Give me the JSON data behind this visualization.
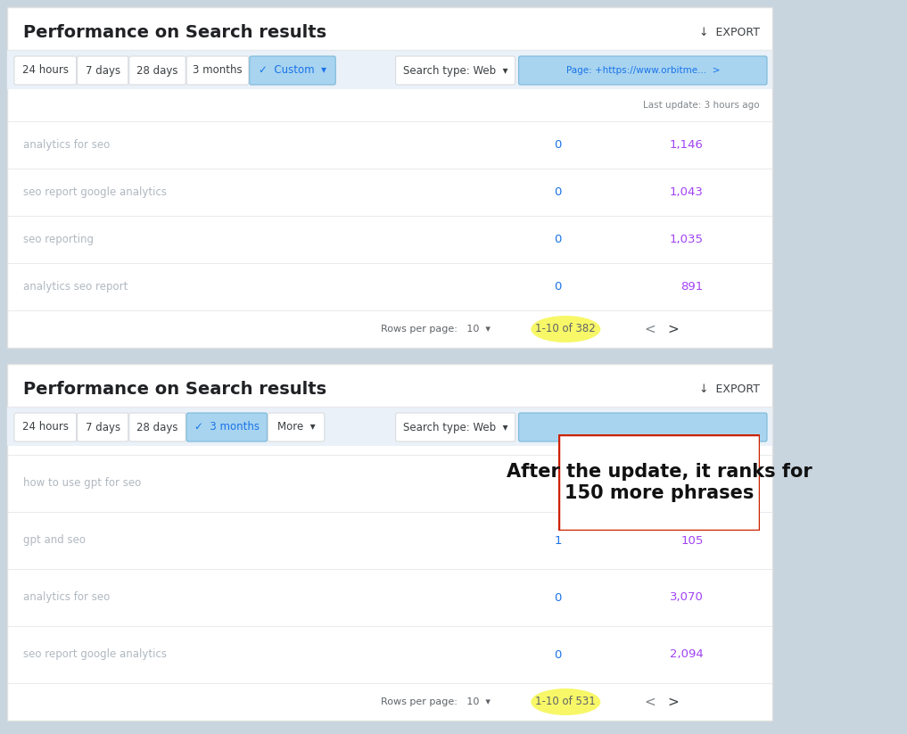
{
  "title": "Performance on Search results",
  "bg_color": "#c8d4de",
  "panel_bg": "#ffffff",
  "table1": {
    "time_buttons": [
      "24 hours",
      "7 days",
      "28 days",
      "3 months"
    ],
    "active_button": "✓  Custom  ▾",
    "filter1": "Search type: Web  ▾",
    "filter2": "Page: +https://www.orbitme...  >",
    "last_update": "Last update: 3 hours ago",
    "rows": [
      {
        "label": "analytics for seo",
        "clicks": "0",
        "impressions": "1,146"
      },
      {
        "label": "seo report google analytics",
        "clicks": "0",
        "impressions": "1,043"
      },
      {
        "label": "seo reporting",
        "clicks": "0",
        "impressions": "1,035"
      },
      {
        "label": "analytics seo report",
        "clicks": "0",
        "impressions": "891"
      }
    ],
    "pagination": "1-10 of 382",
    "rows_per_page": "Rows per page:   10  ▾"
  },
  "table2": {
    "time_buttons": [
      "24 hours",
      "7 days",
      "28 days"
    ],
    "active_button": "✓  3 months",
    "extra_button": "More  ▾",
    "filter1": "Search type: Web  ▾",
    "filter2": "",
    "rows": [
      {
        "label": "how to use gpt for seo",
        "clicks": "",
        "impressions": ""
      },
      {
        "label": "gpt and seo",
        "clicks": "1",
        "impressions": "105"
      },
      {
        "label": "analytics for seo",
        "clicks": "0",
        "impressions": "3,070"
      },
      {
        "label": "seo report google analytics",
        "clicks": "0",
        "impressions": "2,094"
      }
    ],
    "pagination": "1-10 of 531",
    "rows_per_page": "Rows per page:   10  ▾"
  },
  "annotation": {
    "text": "After the update, it ranks for\n150 more phrases",
    "border_color": "#cc2200",
    "bg_color": "#ffffff",
    "text_color": "#111111",
    "fontsize": 15
  },
  "colors": {
    "title_color": "#202124",
    "export_color": "#3c4043",
    "button_bg": "#ffffff",
    "button_border": "#dadce0",
    "active_button_bg": "#a8d4f0",
    "active_button_border": "#7ab8d9",
    "active_button_text": "#1a73e8",
    "row_label_color": "#b0b8c0",
    "clicks_color": "#1a73e8",
    "impressions_color": "#a142f4",
    "pagination_color": "#5f6368",
    "highlight_yellow": "#f5f534",
    "last_update_color": "#80868b",
    "divider_color": "#e8eaed",
    "header_band_bg": "#eaf1f8",
    "panel_border": "#e0e0e0"
  }
}
